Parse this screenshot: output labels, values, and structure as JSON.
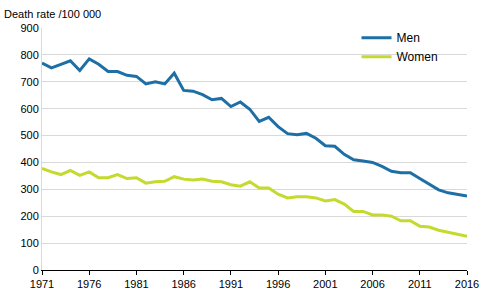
{
  "chart_data": {
    "type": "line",
    "y_label": "Death rate /100 000",
    "x": [
      1971,
      1972,
      1973,
      1974,
      1975,
      1976,
      1977,
      1978,
      1979,
      1980,
      1981,
      1982,
      1983,
      1984,
      1985,
      1986,
      1987,
      1988,
      1989,
      1990,
      1991,
      1992,
      1993,
      1994,
      1995,
      1996,
      1997,
      1998,
      1999,
      2000,
      2001,
      2002,
      2003,
      2004,
      2005,
      2006,
      2007,
      2008,
      2009,
      2010,
      2011,
      2012,
      2013,
      2014,
      2015,
      2016
    ],
    "series": [
      {
        "name": "Men",
        "color": "#1d6fa5",
        "values": [
          770,
          752,
          765,
          778,
          742,
          785,
          765,
          738,
          738,
          724,
          720,
          692,
          700,
          692,
          732,
          668,
          665,
          652,
          633,
          638,
          608,
          625,
          598,
          553,
          568,
          533,
          507,
          503,
          508,
          490,
          462,
          460,
          430,
          410,
          405,
          400,
          385,
          367,
          362,
          362,
          340,
          320,
          298,
          287,
          280,
          275
        ]
      },
      {
        "name": "Women",
        "color": "#c5da2e",
        "values": [
          378,
          365,
          355,
          370,
          352,
          365,
          343,
          343,
          355,
          340,
          343,
          323,
          328,
          330,
          347,
          338,
          335,
          338,
          330,
          328,
          317,
          312,
          328,
          305,
          305,
          282,
          268,
          272,
          272,
          268,
          257,
          262,
          245,
          218,
          218,
          205,
          205,
          200,
          183,
          183,
          163,
          160,
          148,
          140,
          132,
          125
        ]
      }
    ],
    "xlim": [
      1971,
      2016
    ],
    "xticks": [
      1971,
      1976,
      1981,
      1986,
      1991,
      1996,
      2001,
      2006,
      2011,
      2016
    ],
    "ylim": [
      0,
      900
    ],
    "yticks": [
      0,
      100,
      200,
      300,
      400,
      500,
      600,
      700,
      800,
      900
    ],
    "grid": true,
    "legend": "top-right"
  }
}
